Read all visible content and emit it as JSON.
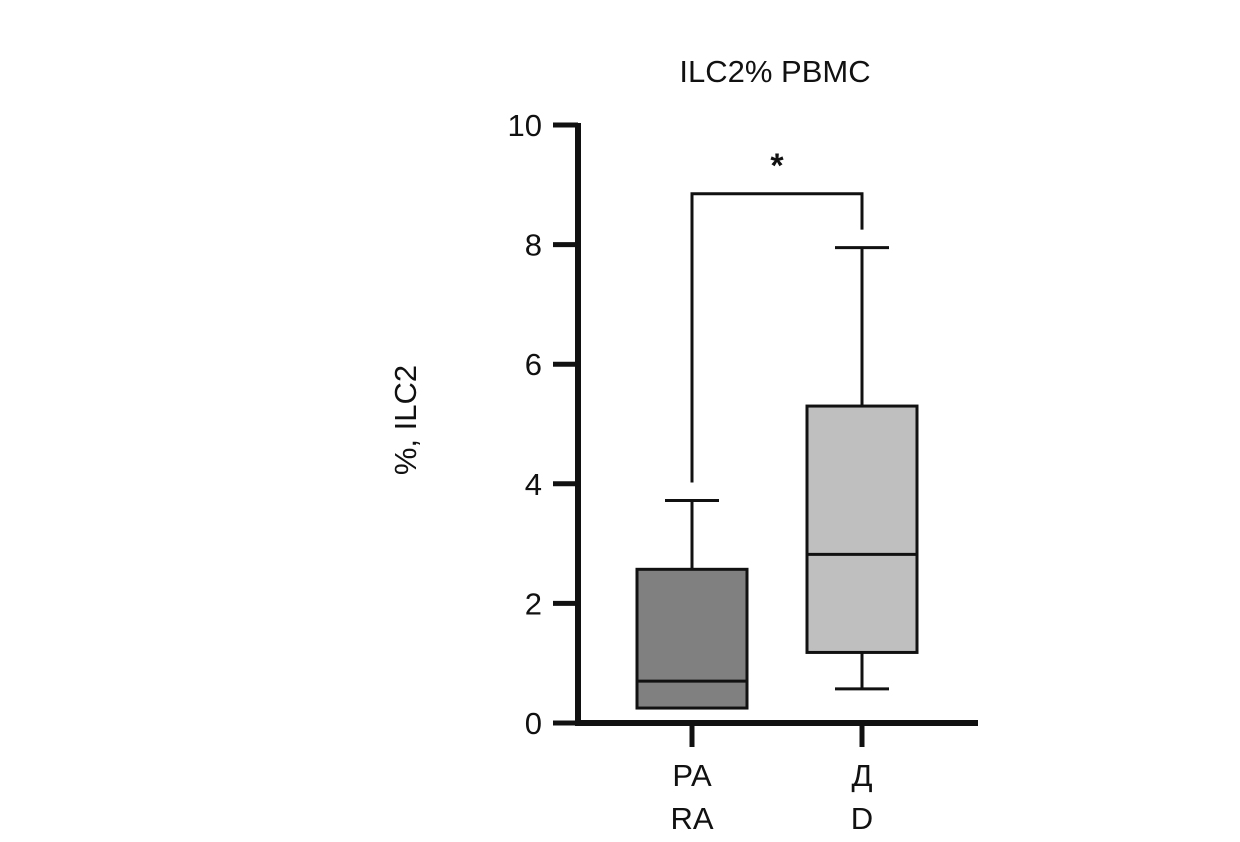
{
  "chart_data": {
    "type": "box",
    "title": "ILC2% PBMC",
    "ylabel": "%, ILC2",
    "xlabel": "",
    "ylim": [
      0,
      10
    ],
    "yticks": [
      0,
      2,
      4,
      6,
      8,
      10
    ],
    "grid": false,
    "legend": "none",
    "categories": [
      {
        "label_ru": "РА",
        "label_en": "RA"
      },
      {
        "label_ru": "Д",
        "label_en": "D"
      }
    ],
    "boxes": [
      {
        "min": 0.25,
        "q1": 0.25,
        "median": 0.7,
        "q3": 2.57,
        "max": 3.72,
        "color": "#808080"
      },
      {
        "min": 0.57,
        "q1": 1.18,
        "median": 2.82,
        "q3": 5.3,
        "max": 7.95,
        "color": "#bfbfbf"
      }
    ],
    "annotations": [
      {
        "type": "significance",
        "from": 0,
        "to": 1,
        "text": "*",
        "y": 8.85
      }
    ]
  }
}
